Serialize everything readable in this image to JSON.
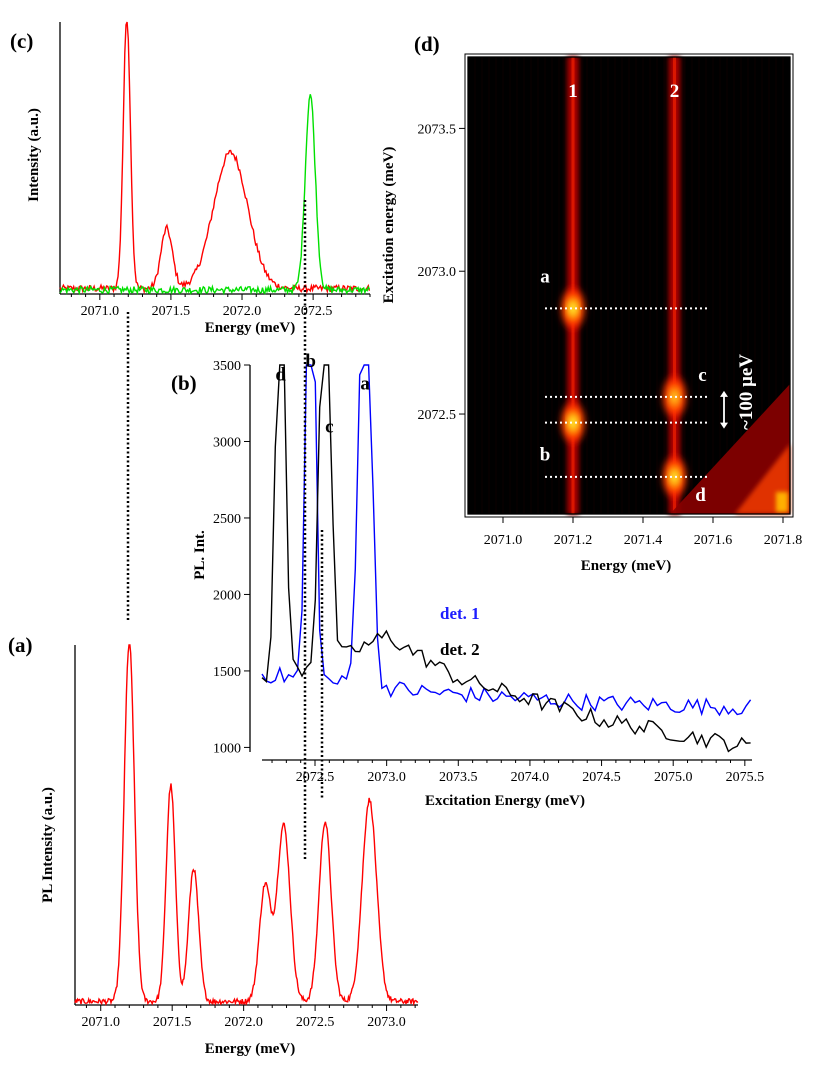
{
  "chart_data": [
    {
      "panel": "(a)",
      "type": "line",
      "xlabel": "Energy (meV)",
      "ylabel": "PL Intensity (a.u.)",
      "xlim": [
        2070.82,
        2073.22
      ],
      "ylim": [
        0,
        1
      ],
      "xticks": [
        "2071.0",
        "2071.5",
        "2072.0",
        "2072.5",
        "2073.0"
      ],
      "yticks": [],
      "grid": false,
      "series": [
        {
          "color": "#ff0000",
          "peaks": [
            {
              "x": 2071.2,
              "height": 1.0,
              "width": 0.035
            },
            {
              "x": 2071.49,
              "height": 0.6,
              "width": 0.032
            },
            {
              "x": 2071.65,
              "height": 0.37,
              "width": 0.035
            },
            {
              "x": 2072.15,
              "height": 0.32,
              "width": 0.04
            },
            {
              "x": 2072.28,
              "height": 0.49,
              "width": 0.045
            },
            {
              "x": 2072.57,
              "height": 0.5,
              "width": 0.042
            },
            {
              "x": 2072.88,
              "height": 0.56,
              "width": 0.05
            }
          ],
          "baseline": 0.01
        }
      ]
    },
    {
      "panel": "(b)",
      "type": "line",
      "xlabel": "Excitation Energy (meV)",
      "ylabel": "PL. Int.",
      "xlim": [
        2072.13,
        2075.55
      ],
      "ylim": [
        970,
        3500
      ],
      "xticks": [
        "2072.5",
        "2073.0",
        "2073.5",
        "2074.0",
        "2074.5",
        "2075.0",
        "2075.5"
      ],
      "yticks": [
        "1000",
        "1500",
        "2000",
        "2500",
        "3000",
        "3500"
      ],
      "grid": false,
      "series": [
        {
          "name": "det. 1",
          "color": "#0000ff",
          "baseline": [
            [
              2072.13,
              1480
            ],
            [
              2072.7,
              1420
            ],
            [
              2073.3,
              1360
            ],
            [
              2074.5,
              1290
            ],
            [
              2075.55,
              1260
            ]
          ],
          "peaks": [
            {
              "x": 2072.47,
              "height": 3410,
              "width": 0.03
            },
            {
              "x": 2072.85,
              "height": 3260,
              "width": 0.04
            }
          ]
        },
        {
          "name": "det. 2",
          "color": "#000000",
          "baseline": [
            [
              2072.13,
              1430
            ],
            [
              2072.7,
              1600
            ],
            [
              2073.0,
              1730
            ],
            [
              2073.5,
              1450
            ],
            [
              2074.5,
              1180
            ],
            [
              2075.55,
              1000
            ]
          ],
          "peaks": [
            {
              "x": 2072.26,
              "height": 3320,
              "width": 0.03
            },
            {
              "x": 2072.57,
              "height": 2980,
              "width": 0.035
            }
          ]
        }
      ],
      "annotations": [
        {
          "text": "d",
          "x": 2072.26
        },
        {
          "text": "b",
          "x": 2072.47
        },
        {
          "text": "c",
          "x": 2072.6
        },
        {
          "text": "a",
          "x": 2072.85
        }
      ]
    },
    {
      "panel": "(c)",
      "type": "line",
      "xlabel": "Energy (meV)",
      "ylabel": "Intensity (a.u.)",
      "xlim": [
        2070.72,
        2072.9
      ],
      "ylim": [
        0,
        1
      ],
      "xticks": [
        "2071.0",
        "2071.5",
        "2072.0",
        "2072.5"
      ],
      "yticks": [],
      "grid": false,
      "series": [
        {
          "color": "#ff0000",
          "peaks": [
            {
              "x": 2071.19,
              "height": 1.0,
              "width": 0.025
            },
            {
              "x": 2071.47,
              "height": 0.22,
              "width": 0.04
            },
            {
              "x": 2071.92,
              "height": 0.5,
              "width": 0.12
            }
          ],
          "baseline": 0.02
        },
        {
          "color": "#00e000",
          "peaks": [
            {
              "x": 2072.48,
              "height": 0.72,
              "width": 0.035
            }
          ],
          "baseline": 0.015
        }
      ]
    },
    {
      "panel": "(d)",
      "type": "heatmap",
      "xlabel": "Energy (meV)",
      "ylabel": "Excitation energy (meV)",
      "xlim": [
        2070.9,
        2071.82
      ],
      "ylim": [
        2072.15,
        2073.75
      ],
      "xticks": [
        "2071.0",
        "2071.2",
        "2071.4",
        "2071.6",
        "2071.8"
      ],
      "yticks": [
        "2072.5",
        "2073.0",
        "2073.5"
      ],
      "colormap": [
        "#000000",
        "#5a0000",
        "#b40000",
        "#ff2a00",
        "#ff9a00",
        "#ffff40"
      ],
      "lines": [
        {
          "label": "1",
          "x": 2071.2
        },
        {
          "label": "2",
          "x": 2071.49
        }
      ],
      "hotspots": [
        {
          "label": "a",
          "x": 2071.2,
          "y": 2072.87,
          "intensity": 1.0
        },
        {
          "label": "b",
          "x": 2071.2,
          "y": 2072.47,
          "intensity": 1.0
        },
        {
          "label": "c",
          "x": 2071.49,
          "y": 2072.56,
          "intensity": 0.7
        },
        {
          "label": "d",
          "x": 2071.49,
          "y": 2072.28,
          "intensity": 0.95
        }
      ],
      "dashed_levels": [
        2072.87,
        2072.56,
        2072.47,
        2072.28
      ],
      "annotation": "~100 μeV"
    }
  ]
}
